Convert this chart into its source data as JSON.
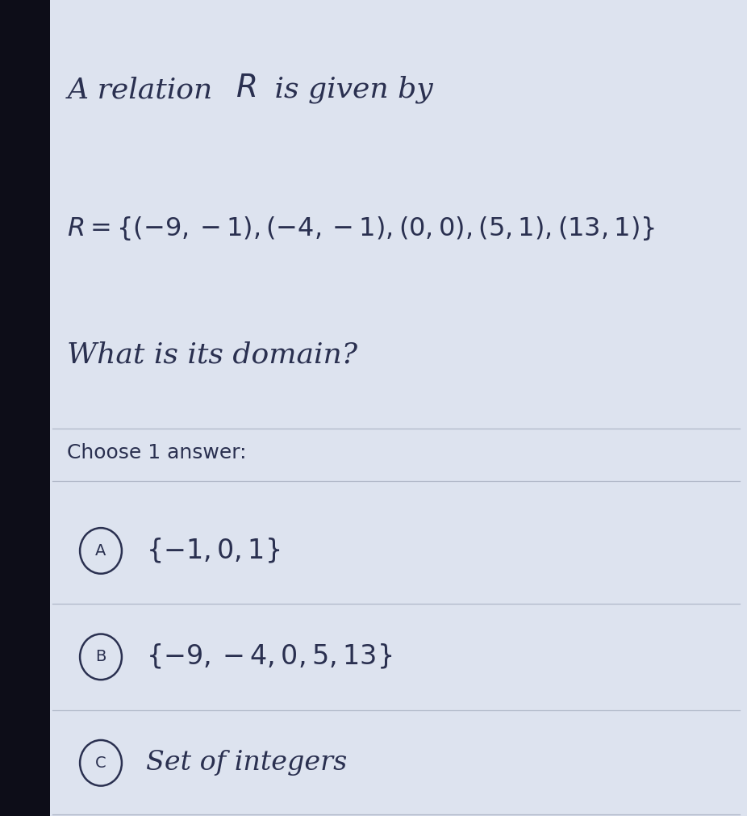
{
  "card_bg": "#dde3ef",
  "dark_strip_color": "#0d0d18",
  "text_color": "#2a3050",
  "title_text": "A relation ",
  "title_R": "R",
  "title_suffix": " is given by",
  "relation_math": "$R = \\{(-9,-1),(-4,-1),(0,0),(5,1),(13,1)\\}$",
  "question": "What is its domain?",
  "choose_label": "Choose 1 answer:",
  "options": [
    {
      "label": "A",
      "math": "$\\{-1,0,1\\}$"
    },
    {
      "label": "B",
      "math": "$\\{-9,-4,0,5,13\\}$"
    },
    {
      "label": "C",
      "text": "Set of integers"
    }
  ],
  "divider_color": "#b0b8c8",
  "title_fontsize": 26,
  "relation_fontsize": 23,
  "question_fontsize": 26,
  "choose_fontsize": 18,
  "option_fontsize": 24,
  "option_label_fontsize": 14
}
